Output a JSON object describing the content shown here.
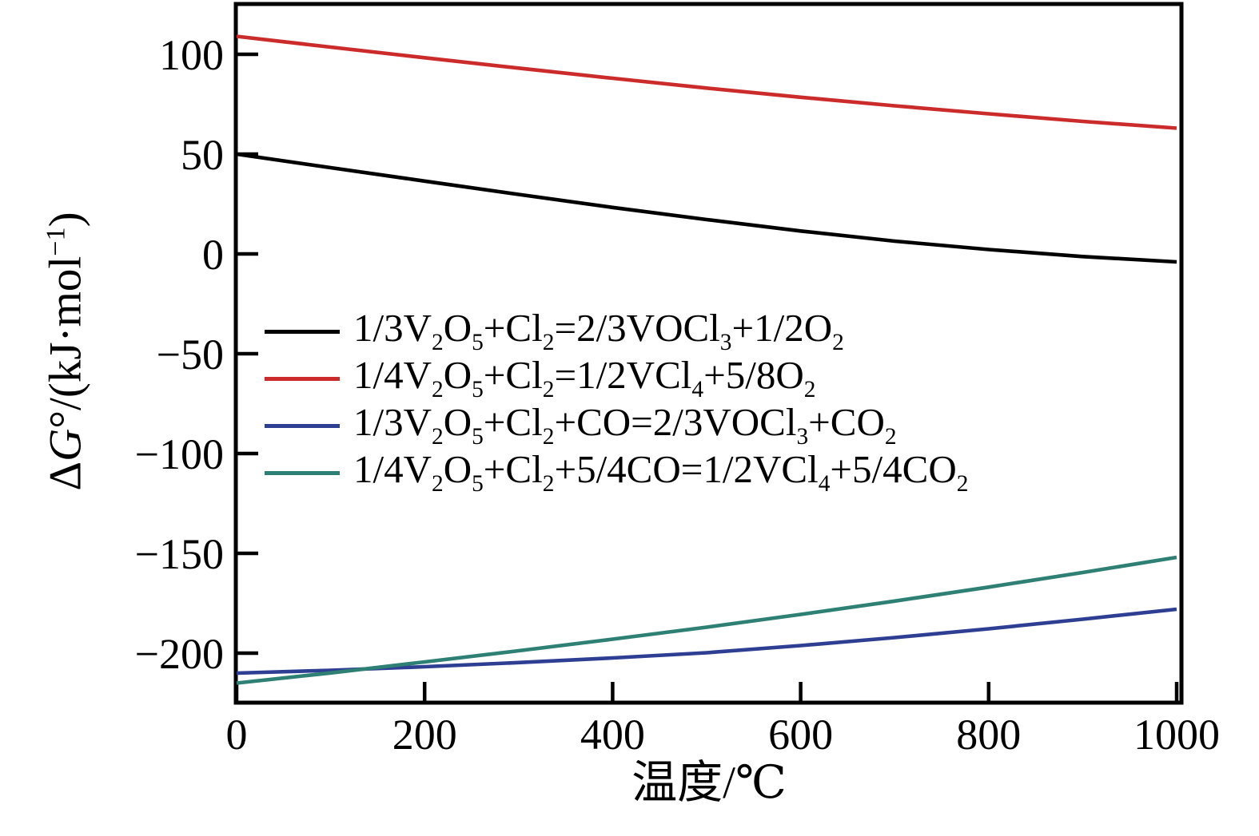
{
  "figure": {
    "background": "#ffffff",
    "frame_color": "#000000"
  },
  "chart_data": {
    "type": "line",
    "title": "",
    "xlabel": "温度/℃",
    "ylabel": "ΔG°/(kJ·mol⁻¹)",
    "ylabel_markup": "Δ*G*°/(kJ·mol^−1^)",
    "xlim": [
      0,
      1000
    ],
    "ylim": [
      -225,
      125
    ],
    "x_ticks": [
      0,
      200,
      400,
      600,
      800,
      1000
    ],
    "x_tick_labels": [
      "0",
      "200",
      "400",
      "600",
      "800",
      "1000"
    ],
    "y_ticks": [
      100,
      50,
      0,
      -50,
      -100,
      -150,
      -200
    ],
    "y_tick_labels": [
      "100",
      "50",
      "0",
      "−50",
      "−100",
      "−150",
      "−200"
    ],
    "grid": false,
    "legend_position": "inside-left-middle",
    "x": [
      0,
      100,
      200,
      300,
      400,
      500,
      600,
      700,
      800,
      900,
      1000
    ],
    "series": [
      {
        "name": "1/3V_2_O_5_+Cl_2_=2/3VOCl_3_+1/2O_2_",
        "color": "#000000",
        "values": [
          50,
          43.2,
          36.5,
          29.8,
          23.3,
          17.2,
          11.5,
          6.4,
          2.2,
          -1.3,
          -4
        ]
      },
      {
        "name": "1/4V_2_O_5_+Cl_2_=1/2VCl_4_+5/8O_2_",
        "color": "#cc2b2b",
        "values": [
          109,
          103.6,
          98.3,
          93.1,
          88,
          83.1,
          78.5,
          74.2,
          70.2,
          66.4,
          63
        ]
      },
      {
        "name": "1/3V_2_O_5_+Cl_2_+CO=2/3VOCl_3_+CO_2_",
        "color": "#2e3e92",
        "values": [
          -210,
          -208.6,
          -206.8,
          -204.7,
          -202.4,
          -199.8,
          -196.2,
          -192.2,
          -187.8,
          -183,
          -178
        ]
      },
      {
        "name": "1/4V_2_O_5_+Cl_2_+5/4CO=1/2VCl_4_+5/4CO_2_",
        "color": "#2e7f74",
        "values": [
          -215,
          -209.9,
          -204.4,
          -198.8,
          -193,
          -187,
          -180.6,
          -173.9,
          -166.9,
          -159.6,
          -152
        ]
      }
    ]
  }
}
